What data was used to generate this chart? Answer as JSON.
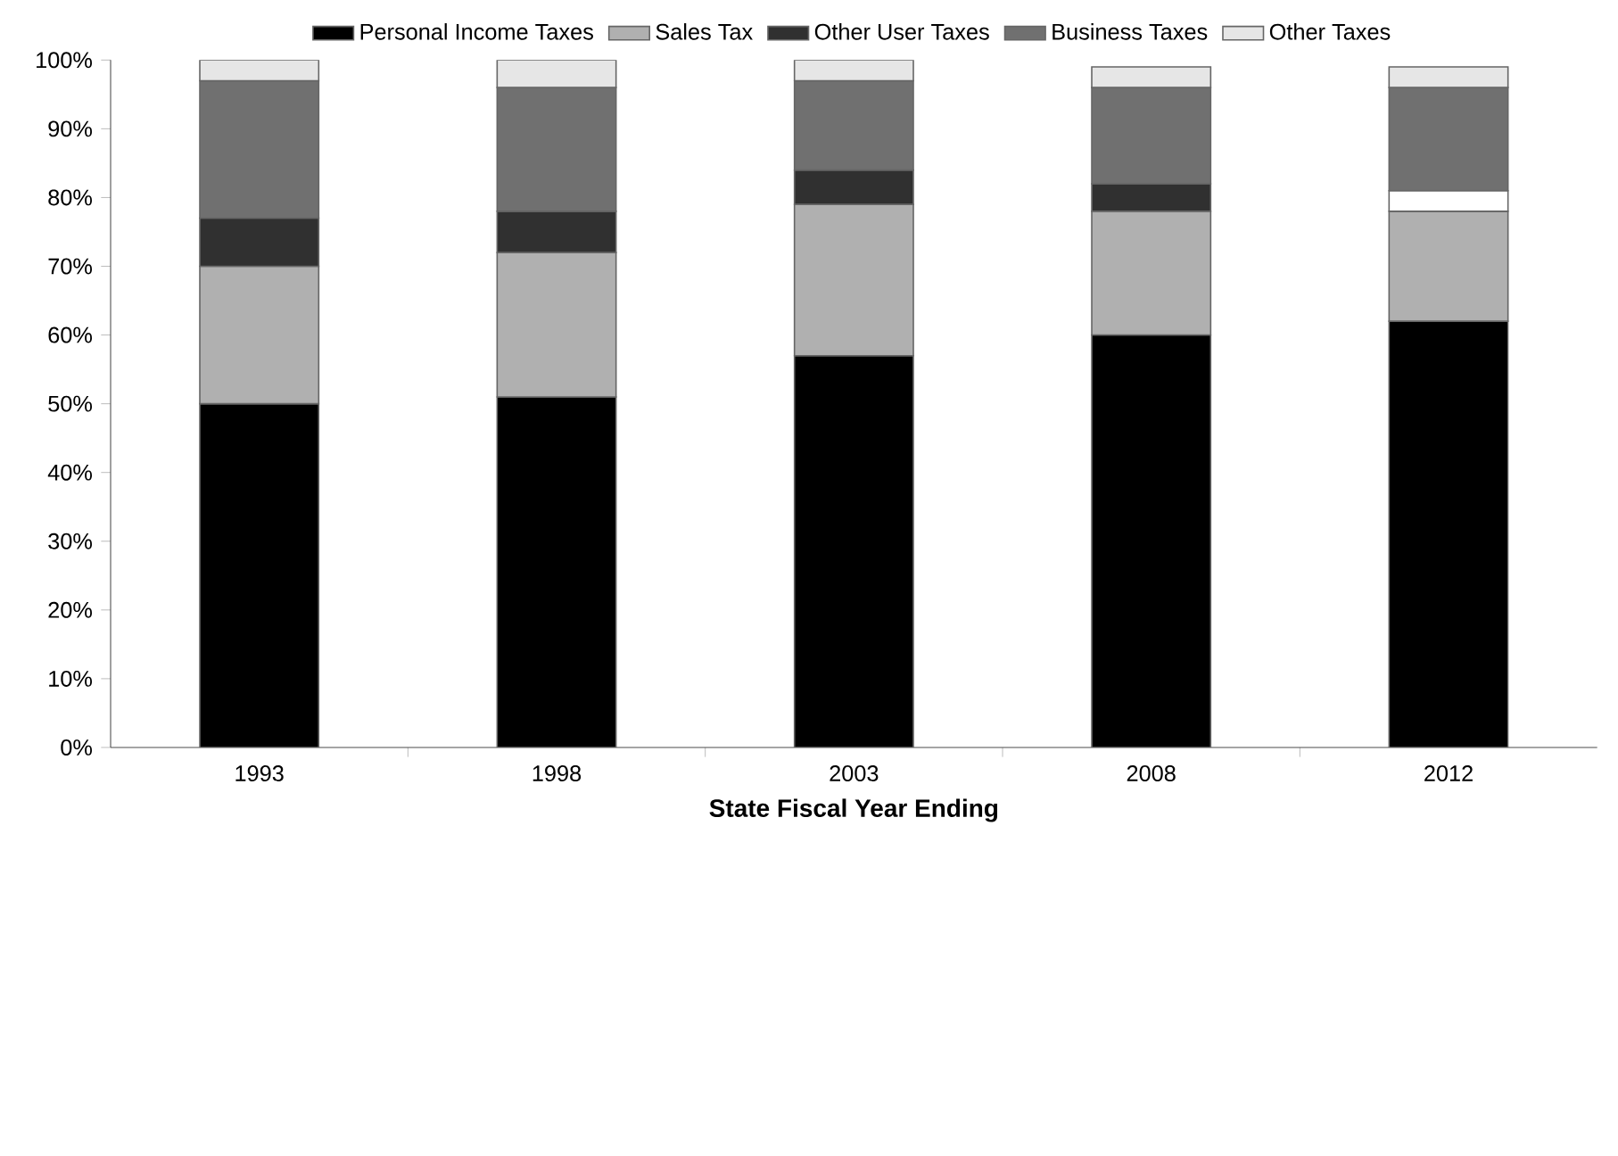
{
  "chart_data": {
    "type": "bar",
    "stacked": true,
    "xlabel": "State Fiscal Year Ending",
    "categories": [
      "1993",
      "1998",
      "2003",
      "2008",
      "2012"
    ],
    "series": [
      {
        "name": "Personal Income Taxes",
        "color": "#000000",
        "values": [
          50,
          51,
          57,
          60,
          62
        ]
      },
      {
        "name": "Sales Tax",
        "color": "#b0b0b0",
        "values": [
          20,
          21,
          22,
          18,
          16
        ]
      },
      {
        "name": "Other User Taxes",
        "color": "#303030",
        "colors": [
          "#303030",
          "#303030",
          "#303030",
          "#303030",
          "#ffffff"
        ],
        "values": [
          7,
          6,
          5,
          4,
          3
        ]
      },
      {
        "name": "Business Taxes",
        "color": "#707070",
        "values": [
          20,
          18,
          13,
          14,
          15
        ]
      },
      {
        "name": "Other Taxes",
        "color": "#e6e6e6",
        "values": [
          3,
          4,
          3,
          3,
          3
        ]
      }
    ],
    "ylim": [
      0,
      100
    ],
    "yticks": [
      {
        "value": 0,
        "label": "0%"
      },
      {
        "value": 10,
        "label": "10%"
      },
      {
        "value": 20,
        "label": "20%"
      },
      {
        "value": 30,
        "label": "30%"
      },
      {
        "value": 40,
        "label": "40%"
      },
      {
        "value": 50,
        "label": "50%"
      },
      {
        "value": 60,
        "label": "60%"
      },
      {
        "value": 70,
        "label": "70%"
      },
      {
        "value": 80,
        "label": "80%"
      },
      {
        "value": 90,
        "label": "90%"
      },
      {
        "value": 100,
        "label": "100%"
      }
    ],
    "grid": false,
    "legend": "top"
  }
}
